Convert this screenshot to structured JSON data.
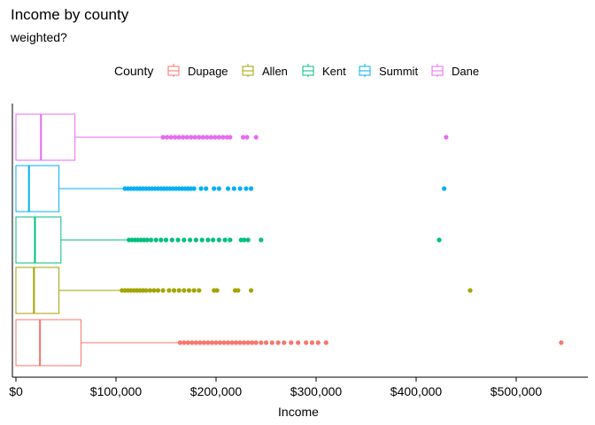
{
  "chart_data": {
    "type": "boxplot",
    "orientation": "horizontal",
    "title": "Income by county",
    "subtitle": "weighted?",
    "xlabel": "Income",
    "ylabel": "",
    "xlim": [
      0,
      575000
    ],
    "x_ticks": [
      0,
      100000,
      200000,
      300000,
      400000,
      500000
    ],
    "x_tick_labels": [
      "$0",
      "$100,000",
      "$200,000",
      "$300,000",
      "$400,000",
      "$500,000"
    ],
    "grid": false,
    "legend": {
      "title": "County",
      "placement": "top",
      "entries": [
        "Dupage",
        "Allen",
        "Kent",
        "Summit",
        "Dane"
      ]
    },
    "series": [
      {
        "name": "Dupage",
        "color": "#F8766D",
        "q1": 0,
        "median": 24000,
        "q3": 65000,
        "whisker_low": 0,
        "whisker_high": 162000,
        "outliers": [
          164000,
          168000,
          172000,
          176000,
          180000,
          184000,
          188000,
          192000,
          196000,
          200000,
          204000,
          208000,
          212000,
          216000,
          220000,
          224000,
          228000,
          232000,
          236000,
          240000,
          245000,
          250000,
          256000,
          262000,
          268000,
          275000,
          282000,
          290000,
          296000,
          302000,
          310000,
          545000
        ]
      },
      {
        "name": "Allen",
        "color": "#A3A500",
        "q1": 0,
        "median": 18000,
        "q3": 43000,
        "whisker_low": 0,
        "whisker_high": 104000,
        "outliers": [
          106000,
          109000,
          112000,
          115000,
          118000,
          121000,
          124000,
          127000,
          130000,
          134000,
          138000,
          142000,
          147000,
          153000,
          158000,
          163000,
          168000,
          173000,
          178000,
          183000,
          198000,
          201000,
          219000,
          222000,
          235000,
          454000
        ]
      },
      {
        "name": "Kent",
        "color": "#00BF7D",
        "q1": 0,
        "median": 19000,
        "q3": 45000,
        "whisker_low": 0,
        "whisker_high": 111000,
        "outliers": [
          113000,
          116000,
          119000,
          122000,
          125000,
          128000,
          131000,
          135000,
          140000,
          145000,
          150000,
          156000,
          162000,
          168000,
          174000,
          180000,
          186000,
          192000,
          197000,
          203000,
          209000,
          214000,
          225000,
          228000,
          232000,
          245000,
          423000
        ]
      },
      {
        "name": "Summit",
        "color": "#00B0F6",
        "q1": 0,
        "median": 13000,
        "q3": 43000,
        "whisker_low": 0,
        "whisker_high": 107000,
        "outliers": [
          109000,
          112000,
          115000,
          118000,
          121000,
          124000,
          127000,
          130000,
          133000,
          136000,
          139000,
          142000,
          145000,
          148000,
          151000,
          154000,
          157000,
          160000,
          163000,
          166000,
          169000,
          172000,
          175000,
          178000,
          185000,
          190000,
          198000,
          203000,
          212000,
          218000,
          224000,
          230000,
          235000,
          428000
        ]
      },
      {
        "name": "Dane",
        "color": "#E76BF3",
        "q1": 0,
        "median": 25000,
        "q3": 59000,
        "whisker_low": 0,
        "whisker_high": 145000,
        "outliers": [
          147000,
          151000,
          155000,
          159000,
          163000,
          167000,
          171000,
          175000,
          179000,
          183000,
          187000,
          191000,
          195000,
          199000,
          203000,
          207000,
          211000,
          214000,
          227000,
          231000,
          240000,
          430000
        ]
      }
    ]
  }
}
